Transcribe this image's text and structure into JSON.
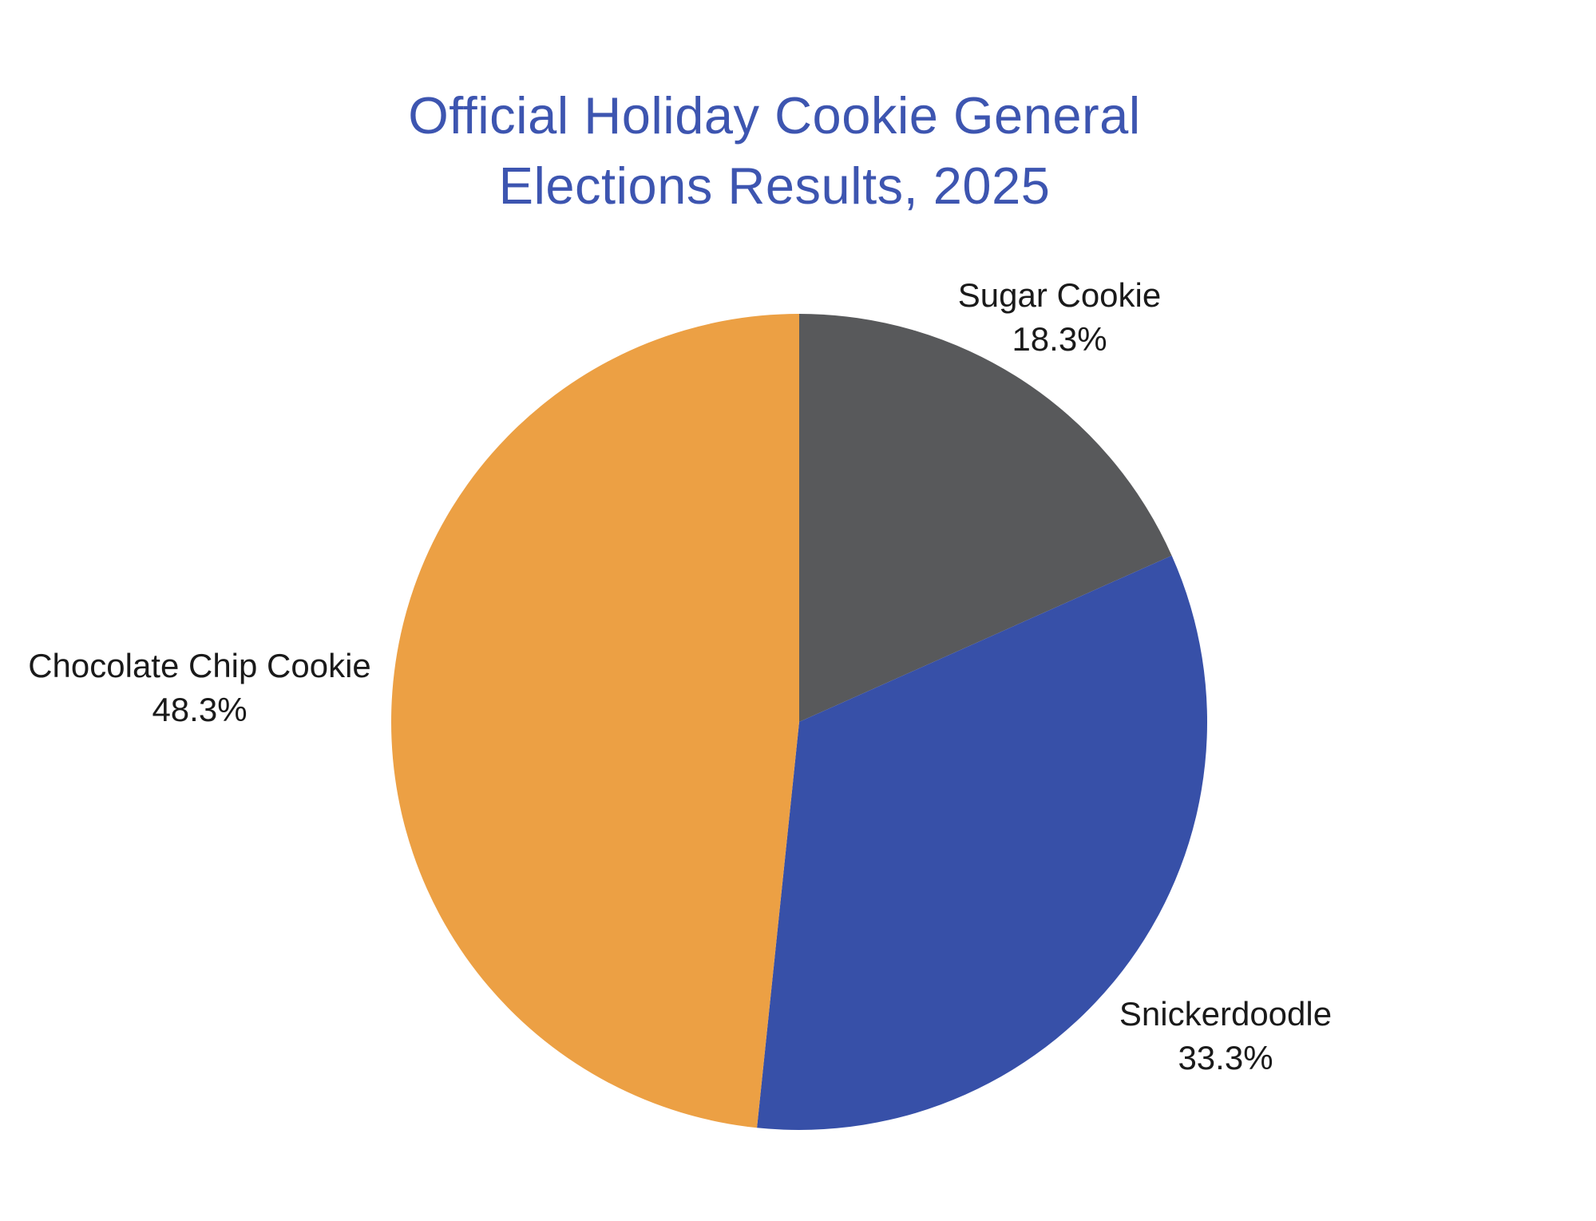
{
  "chart_data": {
    "type": "pie",
    "title": "Official Holiday Cookie General Elections Results, 2025",
    "title_lines": [
      "Official Holiday Cookie General",
      "Elections Results, 2025"
    ],
    "title_color": "#3D55B0",
    "label_color": "#1a1a1a",
    "background_color": "#ffffff",
    "start_angle_deg": 0,
    "direction": "clockwise",
    "label_position": "outside",
    "legend": "none",
    "slices": [
      {
        "label": "Sugar Cookie",
        "value": 18.3,
        "pct_text": "18.3%",
        "color": "#58595B"
      },
      {
        "label": "Snickerdoodle",
        "value": 33.3,
        "pct_text": "33.3%",
        "color": "#3750A8"
      },
      {
        "label": "Chocolate Chip Cookie",
        "value": 48.3,
        "pct_text": "48.3%",
        "color": "#ECA044"
      }
    ]
  }
}
